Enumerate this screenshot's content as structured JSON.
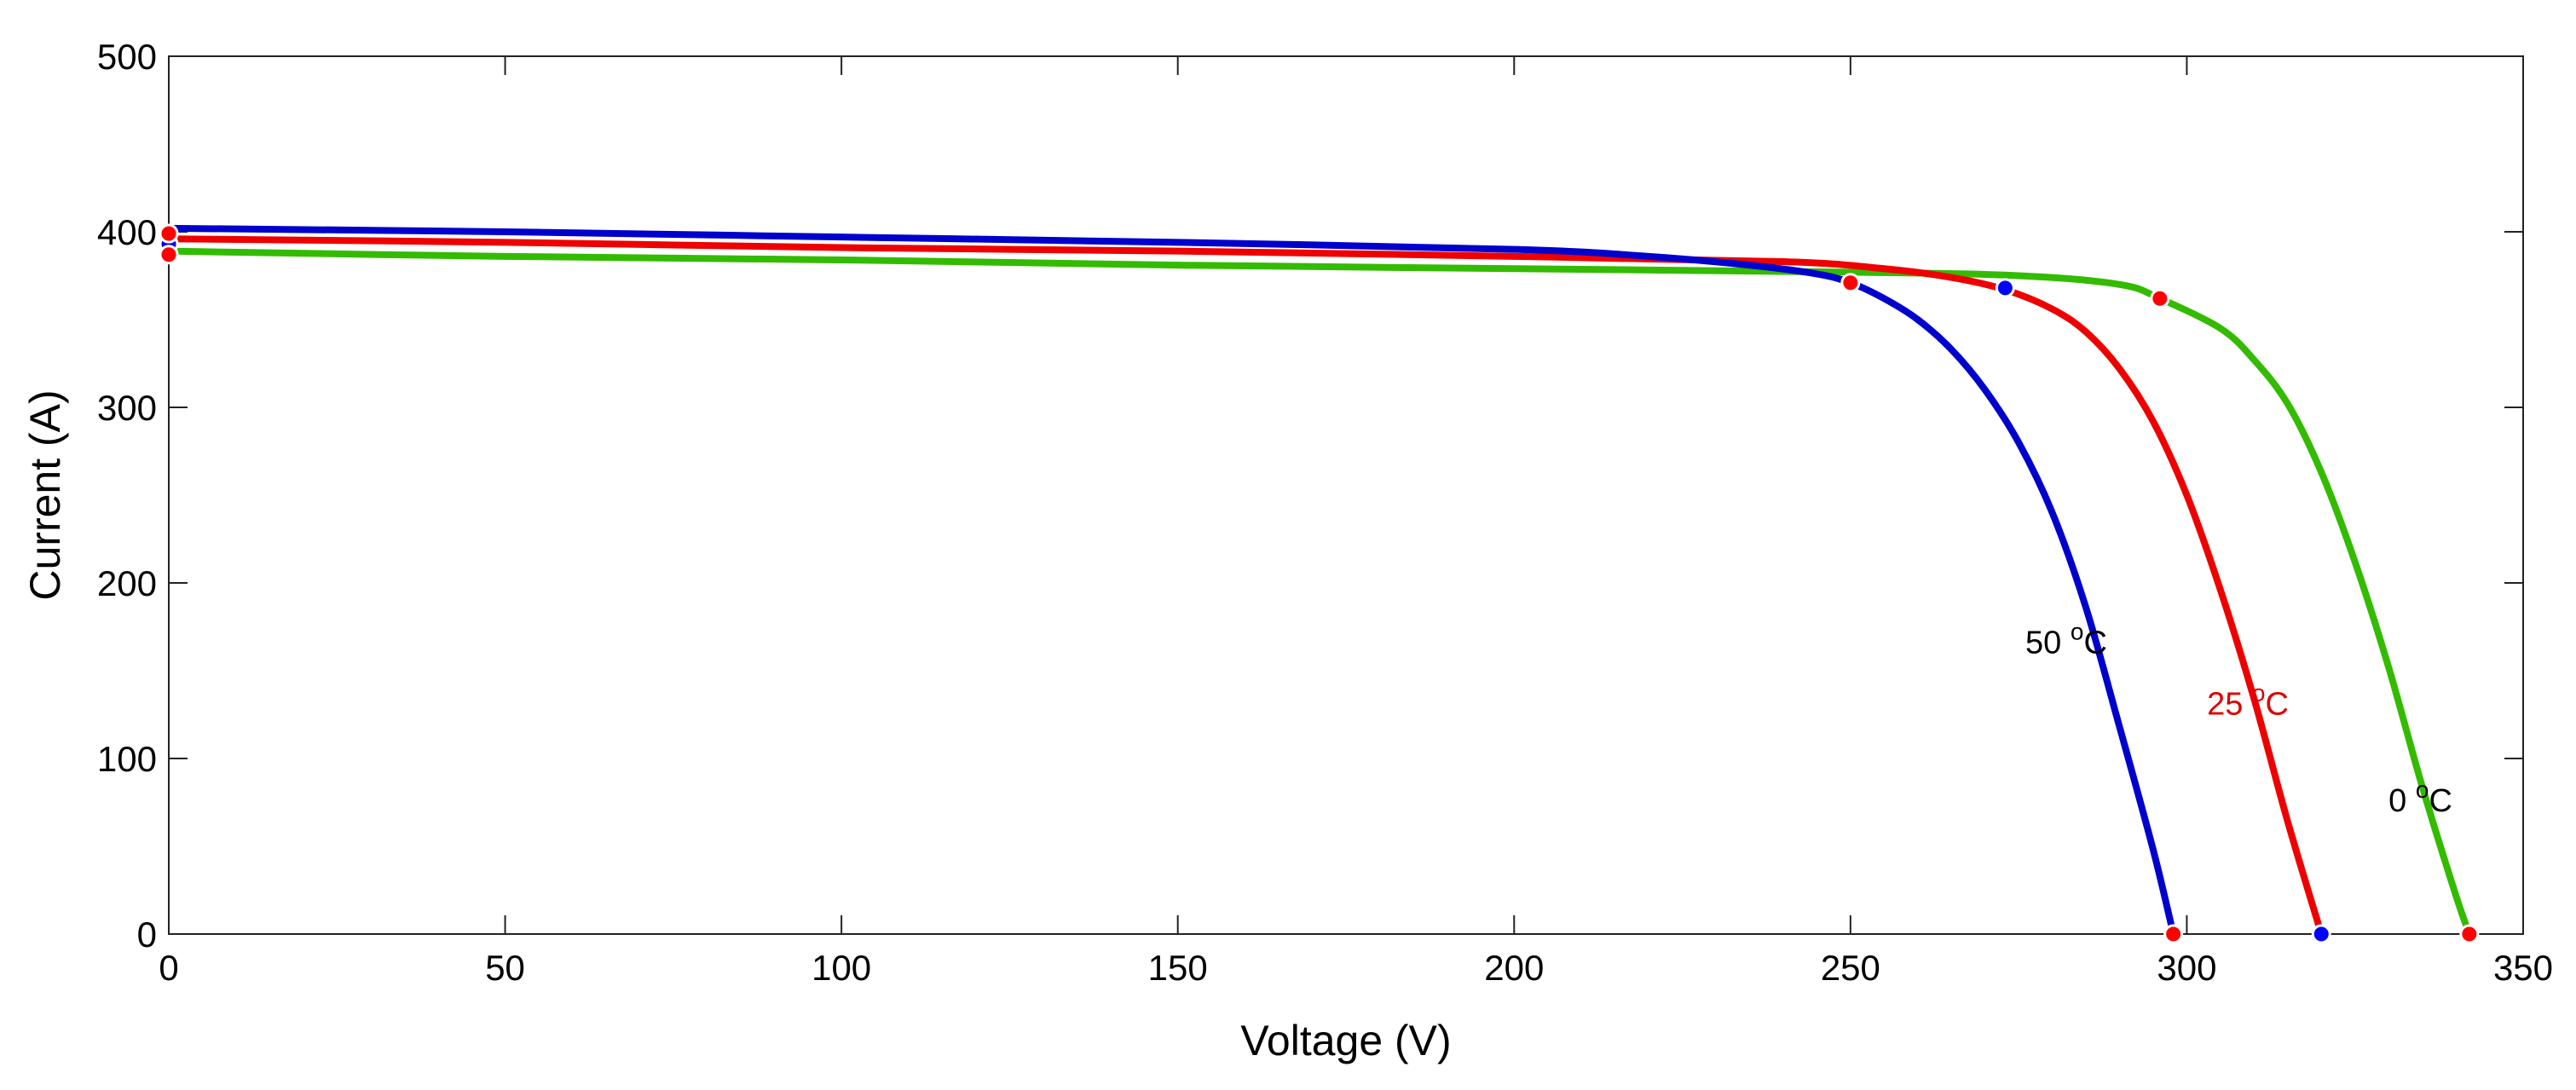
{
  "chart_data": {
    "type": "line",
    "title": "",
    "xlabel": "Voltage (V)",
    "ylabel": "Current (A)",
    "xlim": [
      0,
      350
    ],
    "ylim": [
      0,
      500
    ],
    "xticks": [
      0,
      50,
      100,
      150,
      200,
      250,
      300,
      350
    ],
    "yticks": [
      0,
      100,
      200,
      300,
      400,
      500
    ],
    "grid": false,
    "series": [
      {
        "name": "50 °C",
        "label_main": "50 ",
        "label_sup": "o",
        "label_unit": "C",
        "label_at": [
          276,
          160
        ],
        "color": "#0000cc",
        "isc": 402,
        "voc": 298,
        "x": [
          0,
          50,
          100,
          150,
          200,
          220,
          235,
          245,
          250,
          255,
          260,
          265,
          270,
          275,
          280,
          285,
          290,
          295,
          298
        ],
        "y": [
          402,
          400,
          397,
          394,
          390,
          386,
          381,
          376,
          371,
          362,
          350,
          333,
          310,
          280,
          240,
          186,
          118,
          48,
          0
        ],
        "markers": [
          [
            0,
            393
          ],
          [
            273,
            368
          ],
          [
            320,
            0
          ]
        ],
        "marker_color": "#0000ff"
      },
      {
        "name": "25 °C",
        "label_main": "25 ",
        "label_sup": "o",
        "label_unit": "C",
        "label_at": [
          303,
          125
        ],
        "color": "#ee0000",
        "isc": 396,
        "voc": 320,
        "x": [
          0,
          50,
          100,
          150,
          200,
          240,
          255,
          265,
          273,
          280,
          285,
          290,
          295,
          300,
          305,
          310,
          315,
          320
        ],
        "y": [
          396,
          394,
          391,
          389,
          386,
          383,
          379,
          374,
          367,
          356,
          343,
          322,
          292,
          250,
          196,
          134,
          64,
          0
        ],
        "markers": [
          [
            0,
            399
          ],
          [
            0,
            387
          ],
          [
            250,
            371
          ],
          [
            296,
            362
          ],
          [
            298,
            0
          ],
          [
            342,
            0
          ]
        ],
        "marker_color": "#ff0000"
      },
      {
        "name": "0 °C",
        "label_main": "0 ",
        "label_sup": "o",
        "label_unit": "C",
        "label_at": [
          330,
          70
        ],
        "color": "#33bb00",
        "isc": 389,
        "voc": 342,
        "x": [
          0,
          50,
          100,
          150,
          200,
          250,
          275,
          290,
          296,
          305,
          310,
          315,
          320,
          325,
          330,
          335,
          340,
          342
        ],
        "y": [
          389,
          386,
          384,
          381,
          379,
          377,
          375,
          370,
          362,
          345,
          327,
          302,
          263,
          212,
          152,
          84,
          22,
          0
        ],
        "markers": [],
        "marker_color": "#33bb00"
      }
    ]
  }
}
